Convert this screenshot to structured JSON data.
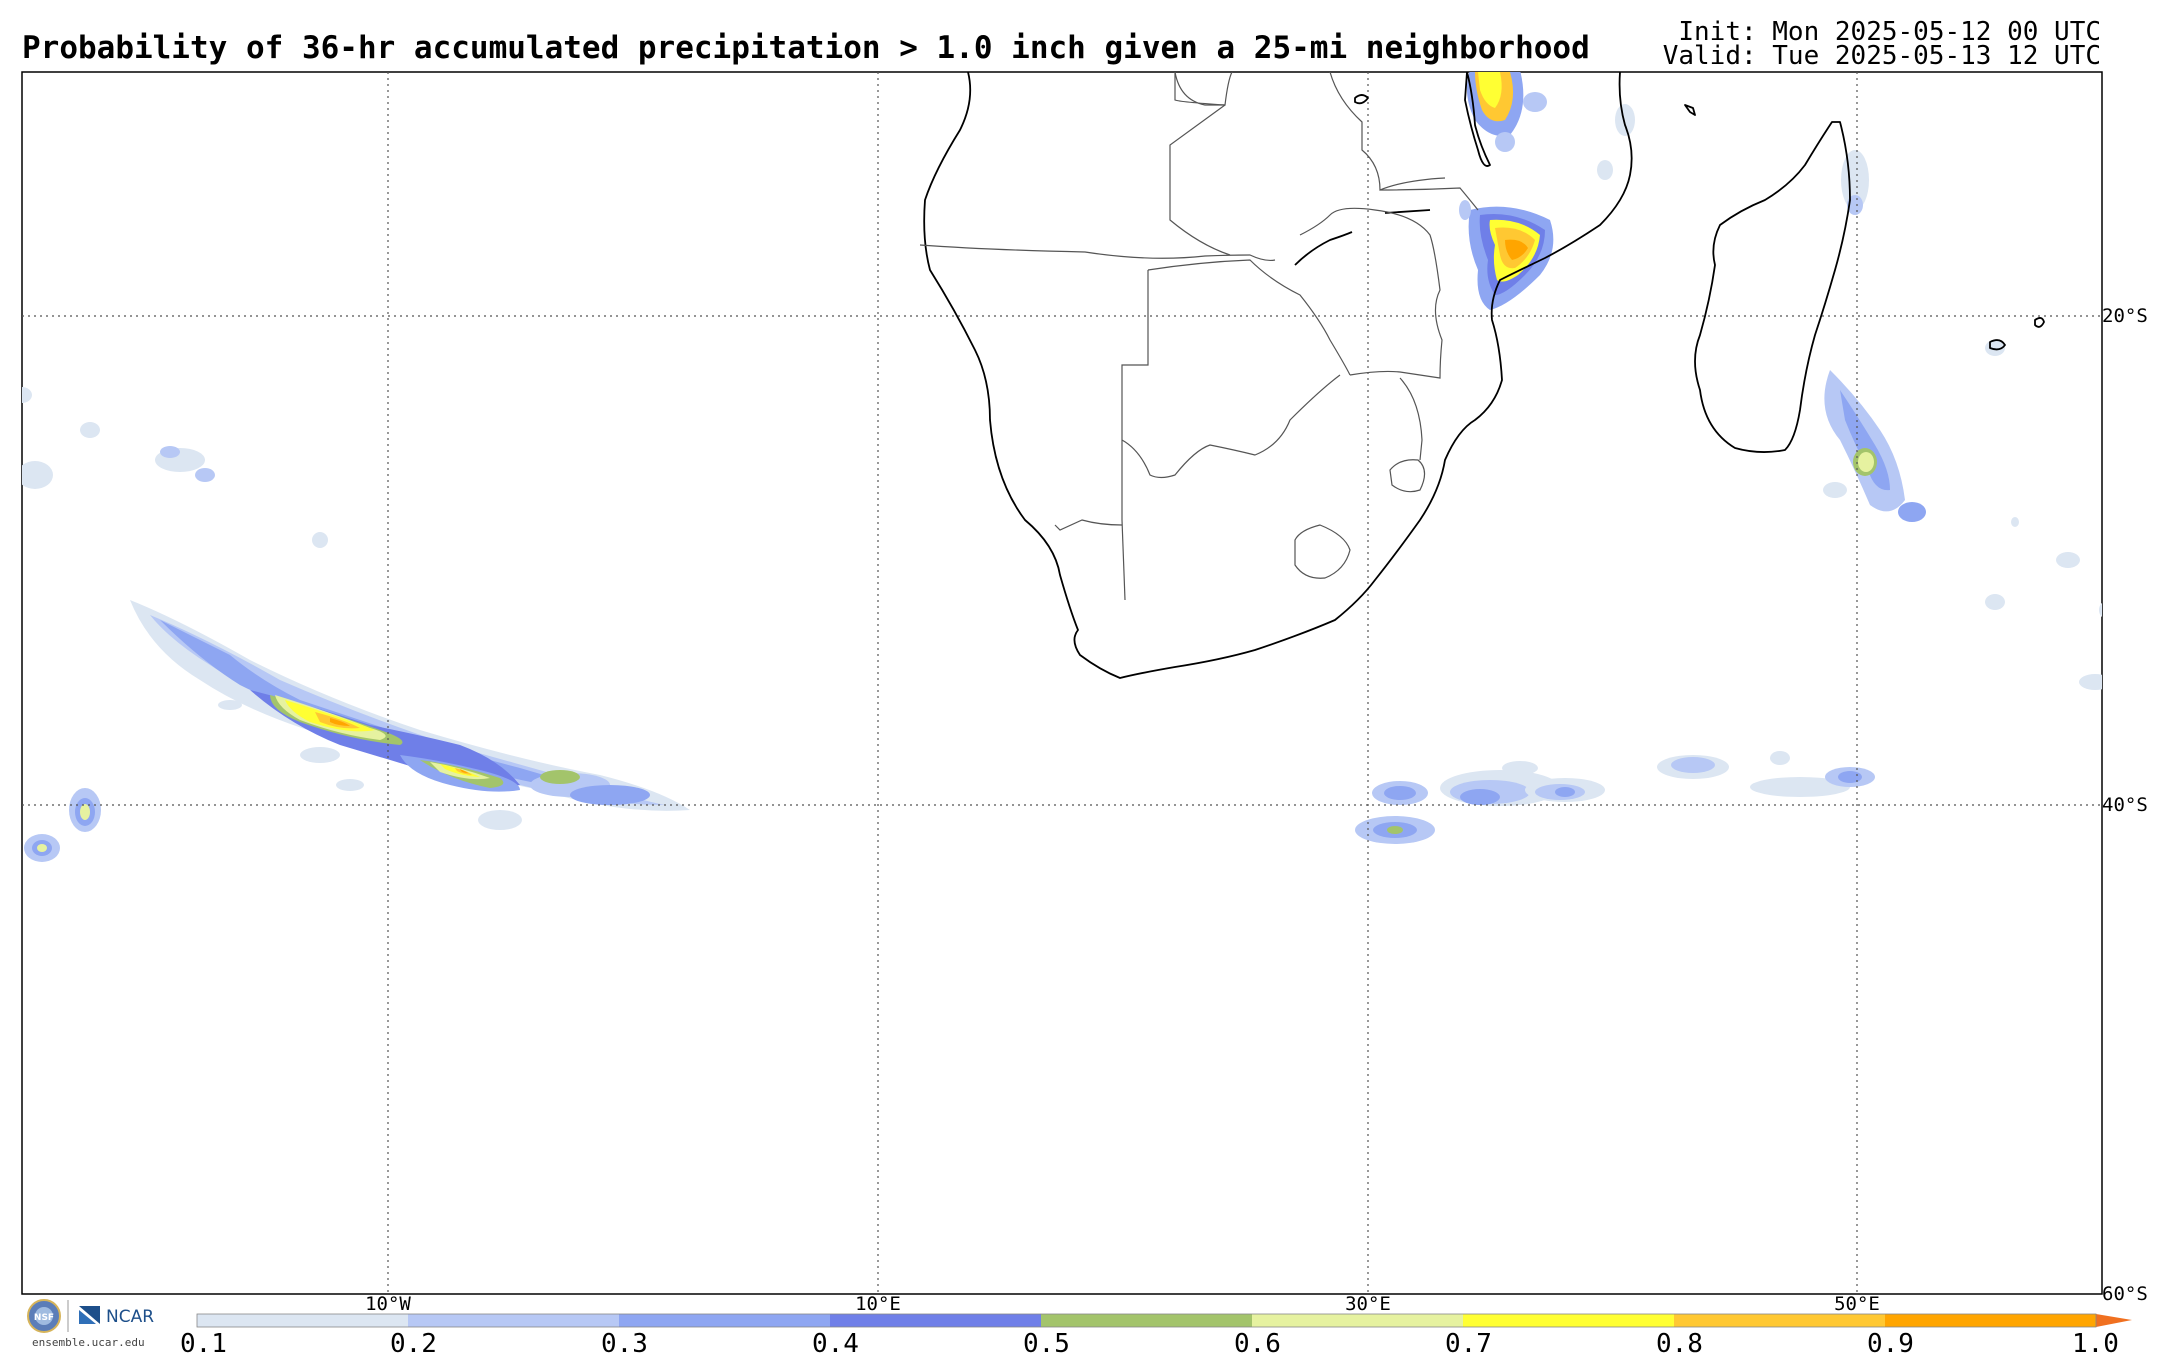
{
  "header": {
    "title": "Probability of 36-hr accumulated precipitation > 1.0 inch given a 25-mi neighborhood",
    "init": "Init: Mon 2025-05-12 00 UTC",
    "valid": "Valid: Tue 2025-05-13 12 UTC"
  },
  "map": {
    "longitude_labels": [
      "10°W",
      "10°E",
      "30°E",
      "50°E"
    ],
    "latitude_labels": [
      "20°S",
      "40°S",
      "60°S"
    ],
    "gridline_style": "dotted",
    "land_outline_color": "#000000",
    "features": [
      "southern-africa",
      "madagascar",
      "mozambique-rain-band",
      "south-atlantic-rain-band",
      "indian-ocean-rain-cells"
    ]
  },
  "legend": {
    "tick_labels": [
      "0.1",
      "0.2",
      "0.3",
      "0.4",
      "0.5",
      "0.6",
      "0.7",
      "0.8",
      "0.9",
      "1.0"
    ],
    "colors": [
      "#dce6f2",
      "#b7c8f5",
      "#8ea6f2",
      "#6f7fe8",
      "#a3c46b",
      "#e6f2a0",
      "#ffff33",
      "#ffc832",
      "#ffa500"
    ],
    "extend": "max"
  },
  "branding": {
    "org": "NCAR",
    "org_seal": "NSF",
    "url": "ensemble.ucar.edu"
  }
}
